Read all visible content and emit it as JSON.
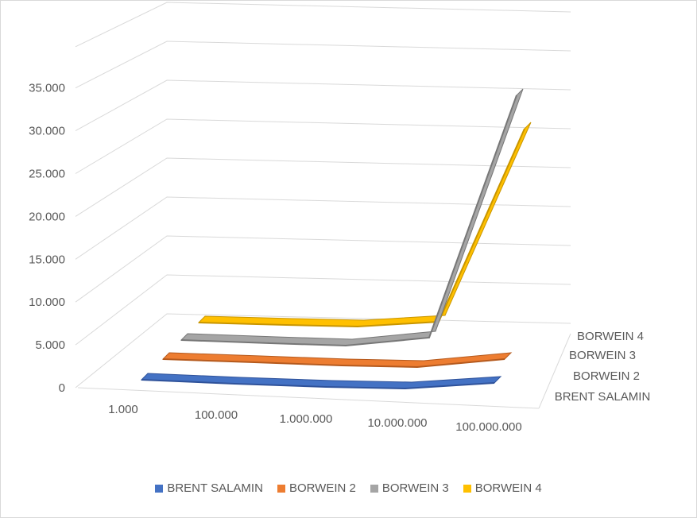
{
  "chart_data": {
    "type": "line",
    "chart_style": "3d-line",
    "categories": [
      "1.000",
      "100.000",
      "1.000.000",
      "10.000.000",
      "100.000.000"
    ],
    "y_tick_labels": [
      "0",
      "5.000",
      "10.000",
      "15.000",
      "20.000",
      "25.000",
      "30.000",
      "35.000"
    ],
    "ylim": [
      0,
      35000
    ],
    "grid": true,
    "legend_position": "bottom",
    "series": [
      {
        "name": "BRENT SALAMIN",
        "color": "#4472c4",
        "values": [
          0,
          0,
          0,
          0,
          0
        ]
      },
      {
        "name": "BORWEIN 2",
        "color": "#ed7d31",
        "values": [
          0,
          0,
          0,
          0,
          0
        ]
      },
      {
        "name": "BORWEIN 3",
        "color": "#a5a5a5",
        "values": [
          0,
          0,
          0,
          0,
          31000
        ]
      },
      {
        "name": "BORWEIN 4",
        "color": "#ffc000",
        "values": [
          0,
          0,
          0,
          0,
          25000
        ]
      }
    ]
  }
}
